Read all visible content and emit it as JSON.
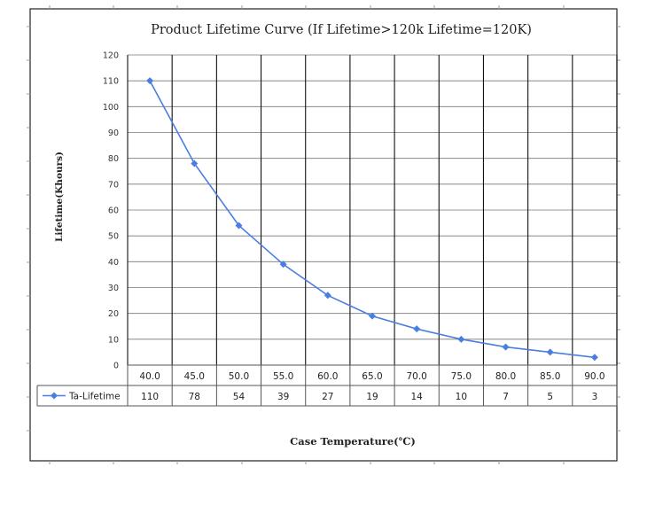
{
  "chart_data": {
    "type": "line",
    "title": "Product Lifetime Curve (If Lifetime>120k Lifetime=120K)",
    "xlabel": "Case Temperature(℃)",
    "ylabel": "Lifetime(Khours)",
    "categories": [
      "40.0",
      "45.0",
      "50.0",
      "55.0",
      "60.0",
      "65.0",
      "70.0",
      "75.0",
      "80.0",
      "85.0",
      "90.0"
    ],
    "yticks": [
      "0",
      "10",
      "20",
      "30",
      "40",
      "50",
      "60",
      "70",
      "80",
      "90",
      "100",
      "110",
      "120"
    ],
    "ylim": [
      0,
      120
    ],
    "grid": true,
    "legend": "data-table",
    "series": [
      {
        "name": "Ta-Lifetime",
        "values": [
          110,
          78,
          54,
          39,
          27,
          19,
          14,
          10,
          7,
          5,
          3
        ],
        "color": "#4a7ee0"
      }
    ],
    "data_table_values": [
      "110",
      "78",
      "54",
      "39",
      "27",
      "19",
      "14",
      "10",
      "7",
      "5",
      "3"
    ]
  }
}
